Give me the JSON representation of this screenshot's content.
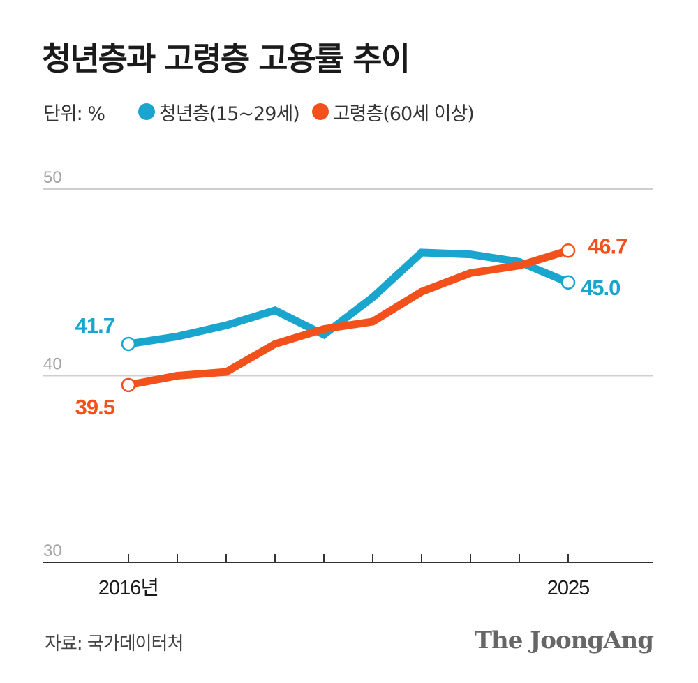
{
  "title": "청년층과 고령층 고용률 추이",
  "unit_label": "단위: %",
  "colors": {
    "youth": "#1aa5cf",
    "elderly": "#f2511b",
    "grid": "#cfcfcf",
    "axis": "#333333",
    "tick_text": "#a3a3a3"
  },
  "chart_data": {
    "type": "line",
    "x": [
      2016,
      2017,
      2018,
      2019,
      2020,
      2021,
      2022,
      2023,
      2024,
      2025
    ],
    "x_tick_labels": [
      "2016년",
      "",
      "",
      "",
      "",
      "",
      "",
      "",
      "",
      "2025"
    ],
    "series": [
      {
        "name": "청년층(15~29세)",
        "color": "#1aa5cf",
        "values": [
          41.7,
          42.1,
          42.7,
          43.5,
          42.2,
          44.2,
          46.6,
          46.5,
          46.1,
          45.0
        ]
      },
      {
        "name": "고령층(60세 이상)",
        "color": "#f2511b",
        "values": [
          39.5,
          40.0,
          40.2,
          41.7,
          42.5,
          42.9,
          44.5,
          45.5,
          45.9,
          46.7
        ]
      }
    ],
    "ylim": [
      30,
      50
    ],
    "y_ticks": [
      30,
      40,
      50
    ],
    "start_labels": [
      "41.7",
      "39.5"
    ],
    "end_labels": [
      "45.0",
      "46.7"
    ],
    "grid": true
  },
  "source": "자료: 국가데이터처",
  "brand": "The JoongAng"
}
